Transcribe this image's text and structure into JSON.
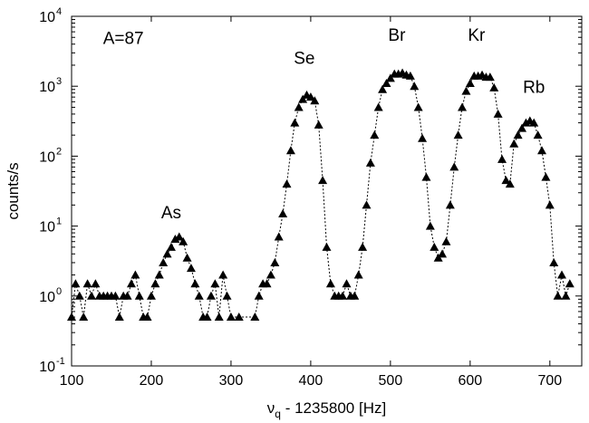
{
  "chart_data": {
    "type": "scatter",
    "title": "",
    "xlabel_main": "ν",
    "xlabel_sub": "q",
    "xlabel_rest": " - 1235800 [Hz]",
    "ylabel": "counts/s",
    "xlim": [
      100,
      740
    ],
    "ylim": [
      0.1,
      10000
    ],
    "yscale": "log",
    "grid": false,
    "x_ticks": [
      100,
      200,
      300,
      400,
      500,
      600,
      700
    ],
    "y_ticks": [
      {
        "value": 0.1,
        "base": "10",
        "exp": "-1"
      },
      {
        "value": 1,
        "base": "10",
        "exp": "0"
      },
      {
        "value": 10,
        "base": "10",
        "exp": "1"
      },
      {
        "value": 100,
        "base": "10",
        "exp": "2"
      },
      {
        "value": 1000,
        "base": "10",
        "exp": "3"
      },
      {
        "value": 10000,
        "base": "10",
        "exp": "4"
      }
    ],
    "annotations": [
      {
        "text": "A=87",
        "x": 165,
        "y": 4000
      },
      {
        "text": "As",
        "x": 225,
        "y": 13
      },
      {
        "text": "Se",
        "x": 392,
        "y": 2100
      },
      {
        "text": "Br",
        "x": 508,
        "y": 4500
      },
      {
        "text": "Kr",
        "x": 608,
        "y": 4500
      },
      {
        "text": "Rb",
        "x": 680,
        "y": 800
      }
    ],
    "series": [
      {
        "marker": "triangle",
        "line": "dotted",
        "points": [
          [
            100,
            0.5
          ],
          [
            105,
            1.5
          ],
          [
            110,
            1.0
          ],
          [
            115,
            0.5
          ],
          [
            120,
            1.5
          ],
          [
            125,
            1.0
          ],
          [
            130,
            1.5
          ],
          [
            135,
            1.0
          ],
          [
            140,
            1.0
          ],
          [
            145,
            1.0
          ],
          [
            150,
            1.0
          ],
          [
            155,
            1.0
          ],
          [
            160,
            0.5
          ],
          [
            165,
            1.0
          ],
          [
            170,
            1.0
          ],
          [
            175,
            1.5
          ],
          [
            180,
            2.0
          ],
          [
            185,
            1.0
          ],
          [
            190,
            0.5
          ],
          [
            195,
            0.5
          ],
          [
            200,
            1.0
          ],
          [
            205,
            1.5
          ],
          [
            210,
            2.0
          ],
          [
            215,
            3.0
          ],
          [
            220,
            4.0
          ],
          [
            225,
            5.0
          ],
          [
            230,
            6.5
          ],
          [
            235,
            7.0
          ],
          [
            240,
            6.0
          ],
          [
            245,
            3.5
          ],
          [
            250,
            2.5
          ],
          [
            255,
            1.5
          ],
          [
            260,
            1.0
          ],
          [
            265,
            0.5
          ],
          [
            270,
            0.5
          ],
          [
            275,
            1.0
          ],
          [
            280,
            1.5
          ],
          [
            285,
            0.5
          ],
          [
            290,
            2.0
          ],
          [
            295,
            1.0
          ],
          [
            300,
            0.5
          ],
          [
            310,
            0.5
          ],
          [
            330,
            0.5
          ],
          [
            335,
            1.0
          ],
          [
            340,
            1.5
          ],
          [
            345,
            1.5
          ],
          [
            350,
            2.0
          ],
          [
            355,
            3.0
          ],
          [
            360,
            7.0
          ],
          [
            365,
            15
          ],
          [
            370,
            40
          ],
          [
            375,
            120
          ],
          [
            380,
            300
          ],
          [
            385,
            500
          ],
          [
            390,
            650
          ],
          [
            395,
            750
          ],
          [
            400,
            700
          ],
          [
            405,
            620
          ],
          [
            410,
            280
          ],
          [
            415,
            45
          ],
          [
            420,
            5.0
          ],
          [
            425,
            1.5
          ],
          [
            430,
            1.0
          ],
          [
            435,
            1.0
          ],
          [
            440,
            1.0
          ],
          [
            445,
            1.5
          ],
          [
            450,
            1.0
          ],
          [
            455,
            1.0
          ],
          [
            460,
            2.0
          ],
          [
            465,
            5.0
          ],
          [
            470,
            20
          ],
          [
            475,
            80
          ],
          [
            480,
            200
          ],
          [
            485,
            500
          ],
          [
            490,
            900
          ],
          [
            495,
            1100
          ],
          [
            500,
            1300
          ],
          [
            505,
            1500
          ],
          [
            510,
            1500
          ],
          [
            515,
            1550
          ],
          [
            520,
            1450
          ],
          [
            525,
            1400
          ],
          [
            530,
            1000
          ],
          [
            535,
            500
          ],
          [
            540,
            180
          ],
          [
            545,
            50
          ],
          [
            550,
            10
          ],
          [
            555,
            5.0
          ],
          [
            560,
            3.5
          ],
          [
            565,
            4.0
          ],
          [
            570,
            6.0
          ],
          [
            575,
            20
          ],
          [
            580,
            70
          ],
          [
            585,
            200
          ],
          [
            590,
            500
          ],
          [
            595,
            850
          ],
          [
            600,
            1100
          ],
          [
            605,
            1400
          ],
          [
            610,
            1400
          ],
          [
            615,
            1450
          ],
          [
            620,
            1350
          ],
          [
            625,
            1350
          ],
          [
            630,
            950
          ],
          [
            635,
            400
          ],
          [
            640,
            90
          ],
          [
            645,
            45
          ],
          [
            650,
            40
          ],
          [
            655,
            150
          ],
          [
            660,
            200
          ],
          [
            665,
            250
          ],
          [
            670,
            300
          ],
          [
            675,
            320
          ],
          [
            680,
            300
          ],
          [
            685,
            200
          ],
          [
            690,
            120
          ],
          [
            695,
            50
          ],
          [
            700,
            20
          ],
          [
            705,
            3.0
          ],
          [
            710,
            1.0
          ],
          [
            715,
            2.0
          ],
          [
            720,
            1.0
          ],
          [
            725,
            1.5
          ]
        ]
      }
    ]
  }
}
